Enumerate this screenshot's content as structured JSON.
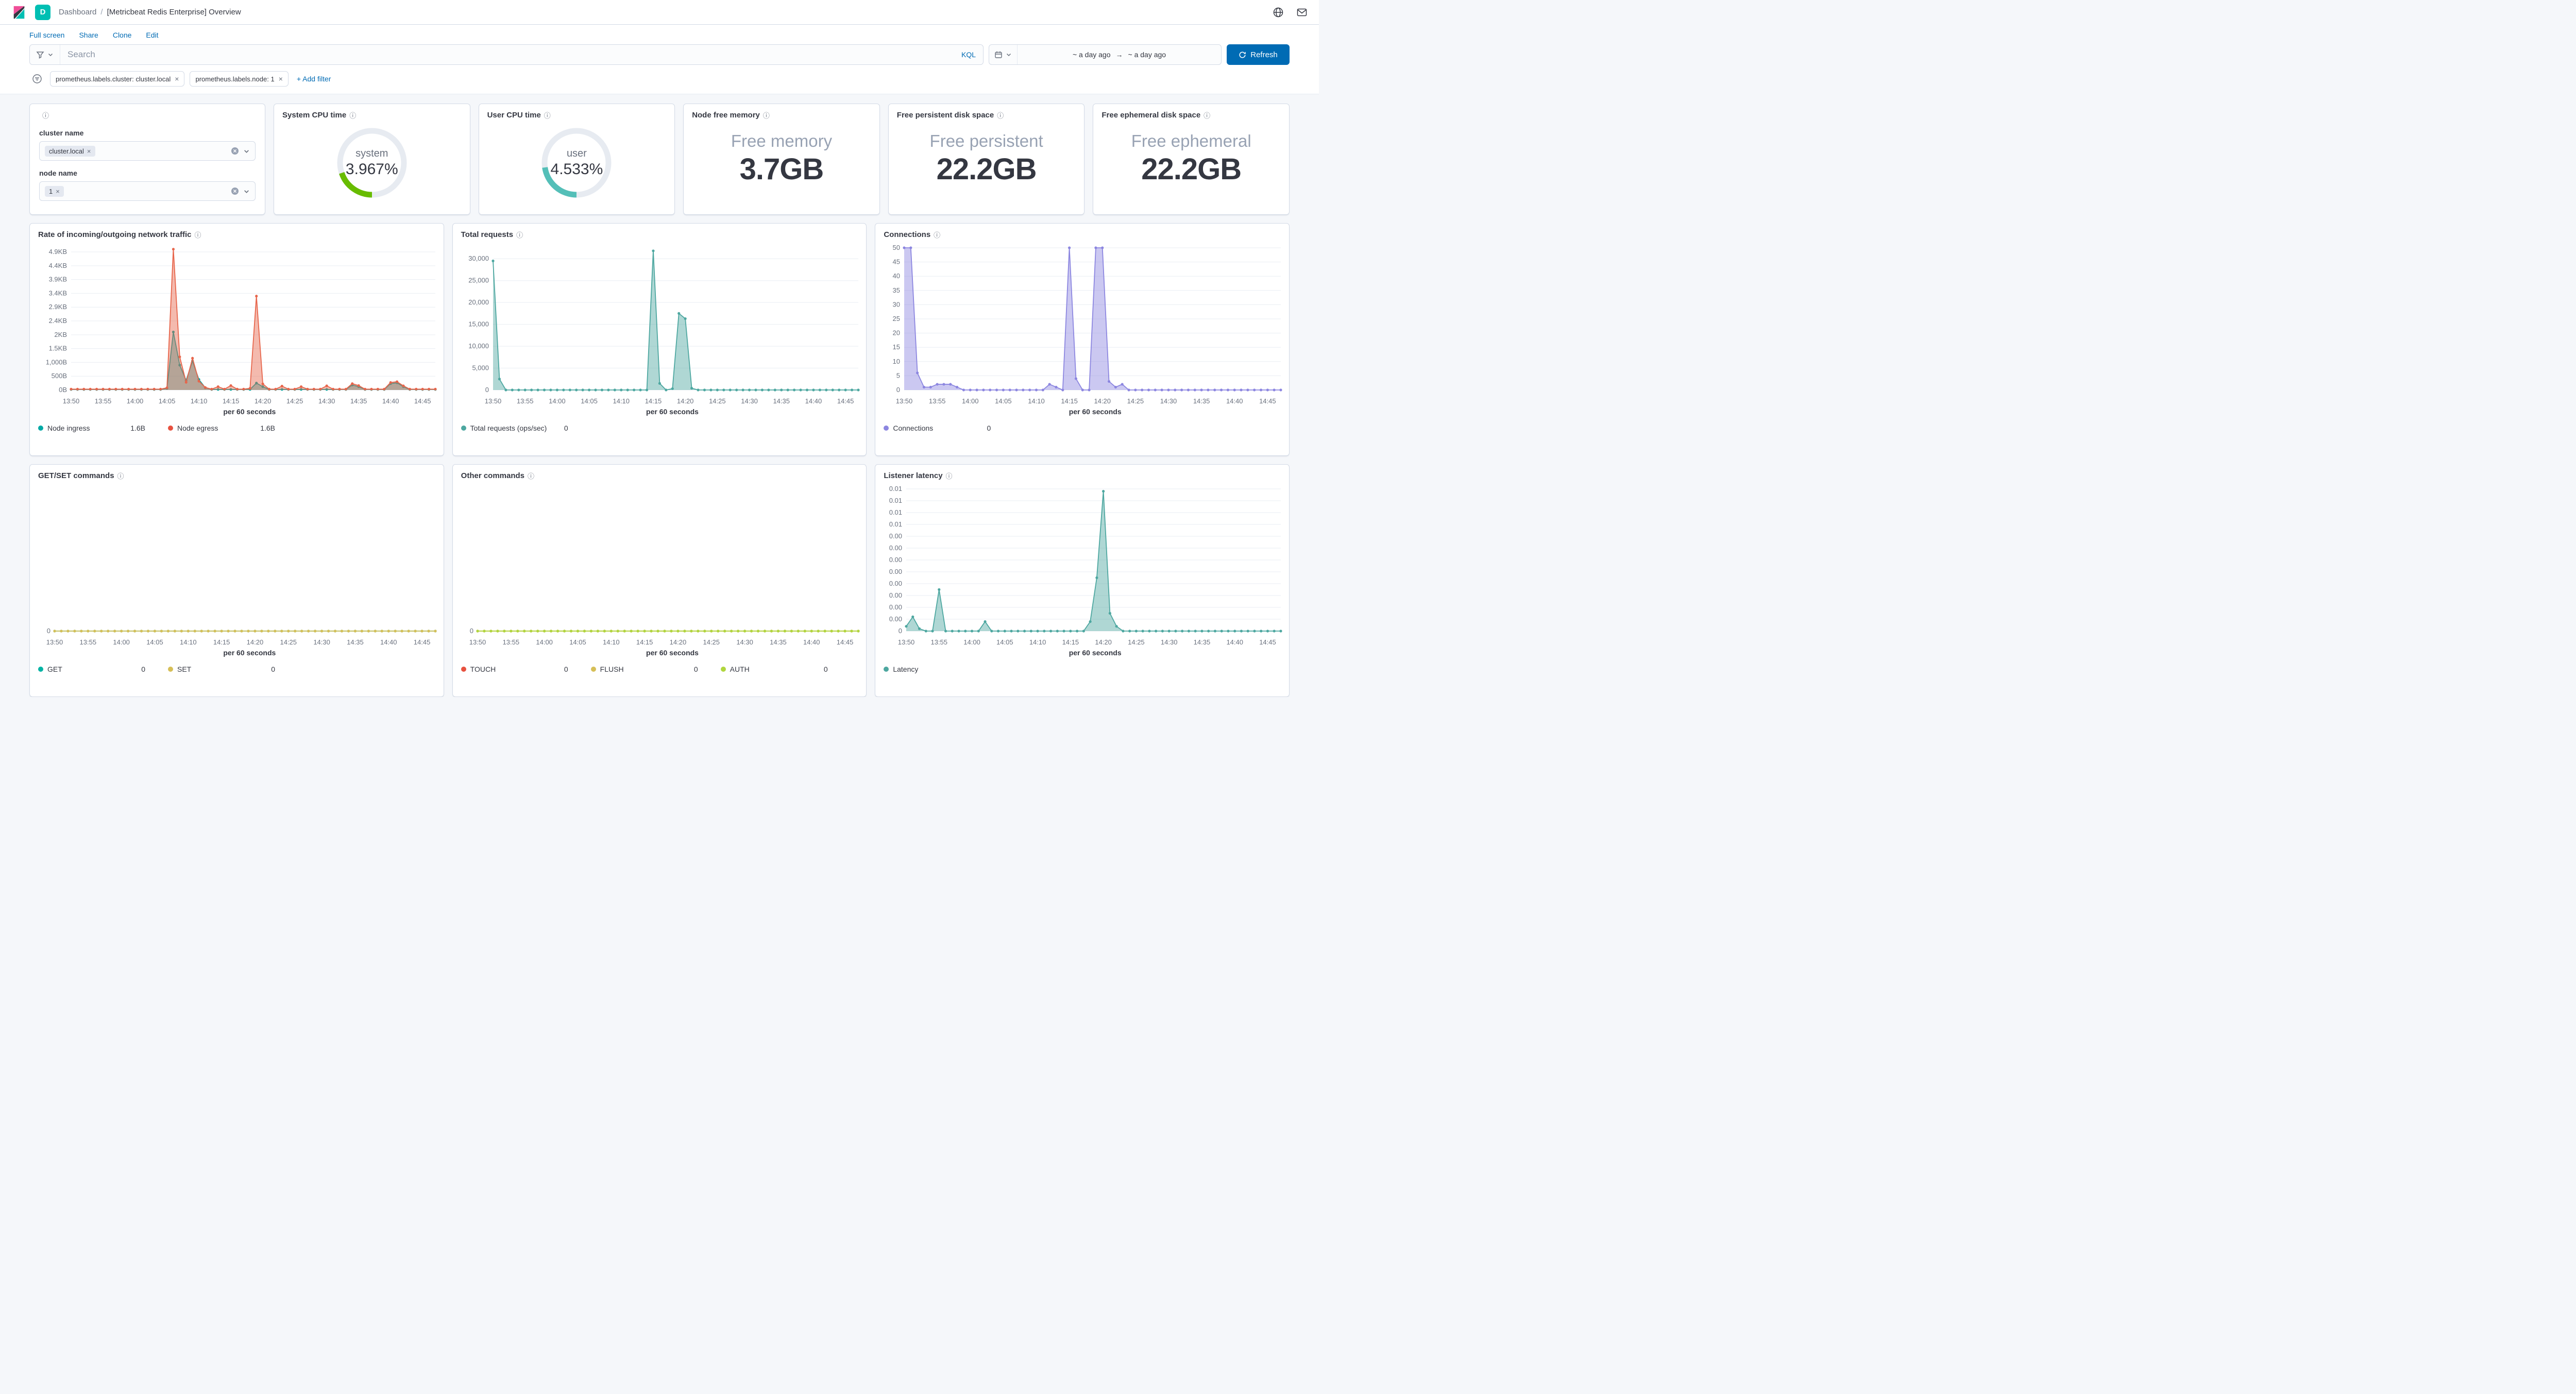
{
  "icons": {
    "info": "ⓘ",
    "close": "×"
  },
  "colors": {
    "primary": "#006BB4",
    "space_badge": "#00BFB3",
    "panel_border": "#D3DAE6"
  },
  "header": {
    "space_badge": "D",
    "breadcrumb_root": "Dashboard",
    "breadcrumb_sep": "/",
    "title": "[Metricbeat Redis Enterprise] Overview"
  },
  "menu": {
    "items": [
      "Full screen",
      "Share",
      "Clone",
      "Edit"
    ]
  },
  "query_bar": {
    "search_placeholder": "Search",
    "kql_label": "KQL",
    "date_start": "~ a day ago",
    "date_arrow": "→",
    "date_end": "~ a day ago",
    "refresh_label": "Refresh"
  },
  "filters": {
    "pills": [
      "prometheus.labels.cluster: cluster.local",
      "prometheus.labels.node: 1"
    ],
    "add_filter": "+ Add filter"
  },
  "controls": {
    "cluster_label": "cluster name",
    "cluster_value": "cluster.local",
    "node_label": "node name",
    "node_value": "1"
  },
  "panels": {
    "system_cpu": {
      "title": "System CPU time",
      "label": "system",
      "value": "3.967%"
    },
    "user_cpu": {
      "title": "User CPU time",
      "label": "user",
      "value": "4.533%"
    },
    "free_memory": {
      "title": "Node free memory",
      "label": "Free memory",
      "value": "3.7GB"
    },
    "free_persistent": {
      "title": "Free persistent disk space",
      "label": "Free persistent",
      "value": "22.2GB"
    },
    "free_ephemeral": {
      "title": "Free ephemeral disk space",
      "label": "Free ephemeral",
      "value": "22.2GB"
    }
  },
  "chart_data": {
    "x_axis_title": "per 60 seconds",
    "x_tick_labels": [
      "13:50",
      "13:55",
      "14:00",
      "14:05",
      "14:10",
      "14:15",
      "14:20",
      "14:25",
      "14:30",
      "14:35",
      "14:40",
      "14:45"
    ],
    "x_tick_minutes": [
      0,
      5,
      10,
      15,
      20,
      25,
      30,
      35,
      40,
      45,
      50,
      55
    ],
    "x_total_minutes": 57,
    "gauge_max": 20,
    "gauges": {
      "system_cpu": {
        "type": "gauge",
        "value": 3.967,
        "max_hint": 20,
        "color": "#68BC00"
      },
      "user_cpu": {
        "type": "gauge",
        "value": 4.533,
        "max_hint": 20,
        "color": "#54BFB8"
      }
    },
    "charts": {
      "network": {
        "type": "area",
        "title": "Rate of incoming/outgoing network traffic",
        "ymax": 5150,
        "margin_left": 80,
        "ytick_values": [
          0,
          500,
          1000,
          1500,
          2000,
          2500,
          3000,
          3500,
          4000,
          4500,
          5000
        ],
        "ytick_labels": [
          "0B",
          "500B",
          "1,000B",
          "1.5KB",
          "2KB",
          "2.4KB",
          "2.9KB",
          "3.4KB",
          "3.9KB",
          "4.4KB",
          "4.9KB"
        ],
        "series": [
          {
            "name": "Node ingress",
            "color": "#00A9A5",
            "values": [
              20,
              20,
              20,
              20,
              20,
              20,
              20,
              20,
              20,
              20,
              20,
              20,
              20,
              20,
              20,
              60,
              2100,
              900,
              350,
              1050,
              380,
              80,
              20,
              20,
              20,
              20,
              20,
              20,
              20,
              250,
              120,
              20,
              20,
              20,
              20,
              20,
              20,
              20,
              20,
              20,
              20,
              20,
              20,
              20,
              180,
              120,
              20,
              20,
              20,
              20,
              230,
              260,
              120,
              20,
              20,
              20,
              20,
              20
            ]
          },
          {
            "name": "Node egress",
            "color": "#E7664C",
            "values": [
              30,
              30,
              30,
              30,
              30,
              30,
              30,
              30,
              30,
              30,
              30,
              30,
              30,
              30,
              30,
              80,
              5100,
              1200,
              280,
              1150,
              320,
              90,
              30,
              120,
              30,
              160,
              30,
              30,
              60,
              3400,
              220,
              30,
              30,
              140,
              30,
              30,
              120,
              30,
              30,
              30,
              150,
              30,
              30,
              30,
              230,
              160,
              30,
              30,
              30,
              30,
              270,
              300,
              150,
              30,
              30,
              30,
              30,
              30
            ]
          }
        ],
        "legend": [
          {
            "label": "Node ingress",
            "value": "1.6B",
            "color": "#00A9A5"
          },
          {
            "label": "Node egress",
            "value": "1.6B",
            "color": "#E7513F"
          }
        ]
      },
      "total_requests": {
        "type": "area",
        "title": "Total requests",
        "ymax": 32500,
        "margin_left": 78,
        "ytick_values": [
          0,
          5000,
          10000,
          15000,
          20000,
          25000,
          30000
        ],
        "ytick_labels": [
          "0",
          "5,000",
          "10,000",
          "15,000",
          "20,000",
          "25,000",
          "30,000"
        ],
        "series": [
          {
            "name": "Total requests (ops/sec)",
            "color": "#4DA7A0",
            "values": [
              29500,
              2500,
              0,
              0,
              0,
              0,
              0,
              0,
              0,
              0,
              0,
              0,
              0,
              0,
              0,
              0,
              0,
              0,
              0,
              0,
              0,
              0,
              0,
              0,
              0,
              31800,
              1500,
              0,
              300,
              17500,
              16300,
              400,
              0,
              0,
              0,
              0,
              0,
              0,
              0,
              0,
              0,
              0,
              0,
              0,
              0,
              0,
              0,
              0,
              0,
              0,
              0,
              0,
              0,
              0,
              0,
              0,
              0,
              0
            ]
          }
        ],
        "legend": [
          {
            "label": "Total requests (ops/sec)",
            "value": "0",
            "color": "#4DA7A0"
          }
        ]
      },
      "connections": {
        "type": "area",
        "title": "Connections",
        "ymax": 50,
        "margin_left": 56,
        "ytick_values": [
          0,
          5,
          10,
          15,
          20,
          25,
          30,
          35,
          40,
          45,
          50
        ],
        "ytick_labels": [
          "0",
          "5",
          "10",
          "15",
          "20",
          "25",
          "30",
          "35",
          "40",
          "45",
          "50"
        ],
        "series": [
          {
            "name": "Connections",
            "color": "#8C86E0",
            "values": [
              50,
              50,
              6,
              1,
              1,
              2,
              2,
              2,
              1,
              0,
              0,
              0,
              0,
              0,
              0,
              0,
              0,
              0,
              0,
              0,
              0,
              0,
              2,
              1,
              0,
              50,
              4,
              0,
              0,
              50,
              50,
              3,
              1,
              2,
              0,
              0,
              0,
              0,
              0,
              0,
              0,
              0,
              0,
              0,
              0,
              0,
              0,
              0,
              0,
              0,
              0,
              0,
              0,
              0,
              0,
              0,
              0,
              0
            ]
          }
        ],
        "legend": [
          {
            "label": "Connections",
            "value": "0",
            "color": "#8C86E0"
          }
        ]
      },
      "getset": {
        "type": "area",
        "title": "GET/SET commands",
        "ymax": 1,
        "margin_left": 48,
        "ytick_values": [
          0
        ],
        "ytick_labels": [
          "0"
        ],
        "series": [
          {
            "name": "GET",
            "color": "#00B3A4",
            "values": [
              0,
              0,
              0,
              0,
              0,
              0,
              0,
              0,
              0,
              0,
              0,
              0,
              0,
              0,
              0,
              0,
              0,
              0,
              0,
              0,
              0,
              0,
              0,
              0,
              0,
              0,
              0,
              0,
              0,
              0,
              0,
              0,
              0,
              0,
              0,
              0,
              0,
              0,
              0,
              0,
              0,
              0,
              0,
              0,
              0,
              0,
              0,
              0,
              0,
              0,
              0,
              0,
              0,
              0,
              0,
              0,
              0,
              0
            ]
          },
          {
            "name": "SET",
            "color": "#D6BF57",
            "values": [
              0,
              0,
              0,
              0,
              0,
              0,
              0,
              0,
              0,
              0,
              0,
              0,
              0,
              0,
              0,
              0,
              0,
              0,
              0,
              0,
              0,
              0,
              0,
              0,
              0,
              0,
              0,
              0,
              0,
              0,
              0,
              0,
              0,
              0,
              0,
              0,
              0,
              0,
              0,
              0,
              0,
              0,
              0,
              0,
              0,
              0,
              0,
              0,
              0,
              0,
              0,
              0,
              0,
              0,
              0,
              0,
              0,
              0
            ]
          }
        ],
        "legend": [
          {
            "label": "GET",
            "value": "0",
            "color": "#00B3A4"
          },
          {
            "label": "SET",
            "value": "0",
            "color": "#D6BF57"
          }
        ]
      },
      "other": {
        "type": "area",
        "title": "Other commands",
        "ymax": 1,
        "margin_left": 48,
        "ytick_values": [
          0
        ],
        "ytick_labels": [
          "0"
        ],
        "series": [
          {
            "name": "TOUCH",
            "color": "#E7513F",
            "values": [
              0,
              0,
              0,
              0,
              0,
              0,
              0,
              0,
              0,
              0,
              0,
              0,
              0,
              0,
              0,
              0,
              0,
              0,
              0,
              0,
              0,
              0,
              0,
              0,
              0,
              0,
              0,
              0,
              0,
              0,
              0,
              0,
              0,
              0,
              0,
              0,
              0,
              0,
              0,
              0,
              0,
              0,
              0,
              0,
              0,
              0,
              0,
              0,
              0,
              0,
              0,
              0,
              0,
              0,
              0,
              0,
              0,
              0
            ]
          },
          {
            "name": "FLUSH",
            "color": "#D6BF57",
            "values": [
              0,
              0,
              0,
              0,
              0,
              0,
              0,
              0,
              0,
              0,
              0,
              0,
              0,
              0,
              0,
              0,
              0,
              0,
              0,
              0,
              0,
              0,
              0,
              0,
              0,
              0,
              0,
              0,
              0,
              0,
              0,
              0,
              0,
              0,
              0,
              0,
              0,
              0,
              0,
              0,
              0,
              0,
              0,
              0,
              0,
              0,
              0,
              0,
              0,
              0,
              0,
              0,
              0,
              0,
              0,
              0,
              0,
              0
            ]
          },
          {
            "name": "AUTH",
            "color": "#B0D63E",
            "values": [
              0,
              0,
              0,
              0,
              0,
              0,
              0,
              0,
              0,
              0,
              0,
              0,
              0,
              0,
              0,
              0,
              0,
              0,
              0,
              0,
              0,
              0,
              0,
              0,
              0,
              0,
              0,
              0,
              0,
              0,
              0,
              0,
              0,
              0,
              0,
              0,
              0,
              0,
              0,
              0,
              0,
              0,
              0,
              0,
              0,
              0,
              0,
              0,
              0,
              0,
              0,
              0,
              0,
              0,
              0,
              0,
              0,
              0
            ]
          }
        ],
        "legend": [
          {
            "label": "TOUCH",
            "value": "0",
            "color": "#E7513F"
          },
          {
            "label": "FLUSH",
            "value": "0",
            "color": "#D6BF57"
          },
          {
            "label": "AUTH",
            "value": "0",
            "color": "#B0D63E"
          }
        ]
      },
      "latency": {
        "type": "area",
        "title": "Listener latency",
        "ymax": 0.012,
        "margin_left": 60,
        "ytick_values": [
          0,
          0.001,
          0.002,
          0.003,
          0.004,
          0.005,
          0.006,
          0.007,
          0.008,
          0.009,
          0.01,
          0.011,
          0.012
        ],
        "ytick_labels": [
          "0",
          "0.00",
          "0.00",
          "0.00",
          "0.00",
          "0.00",
          "0.00",
          "0.00",
          "0.00",
          "0.01",
          "0.01",
          "0.01",
          "0.01"
        ],
        "series": [
          {
            "name": "Latency",
            "color": "#4DA7A0",
            "values": [
              0.0004,
              0.0012,
              0.0002,
              0,
              0,
              0.0035,
              0,
              0,
              0,
              0,
              0,
              0,
              0.0008,
              0,
              0,
              0,
              0,
              0,
              0,
              0,
              0,
              0,
              0,
              0,
              0,
              0,
              0,
              0,
              0.0008,
              0.0045,
              0.0118,
              0.0015,
              0.0004,
              0,
              0,
              0,
              0,
              0,
              0,
              0,
              0,
              0,
              0,
              0,
              0,
              0,
              0,
              0,
              0,
              0,
              0,
              0,
              0,
              0,
              0,
              0,
              0,
              0
            ]
          }
        ],
        "legend": [
          {
            "label": "Latency",
            "value": "",
            "color": "#4DA7A0"
          }
        ]
      }
    }
  }
}
